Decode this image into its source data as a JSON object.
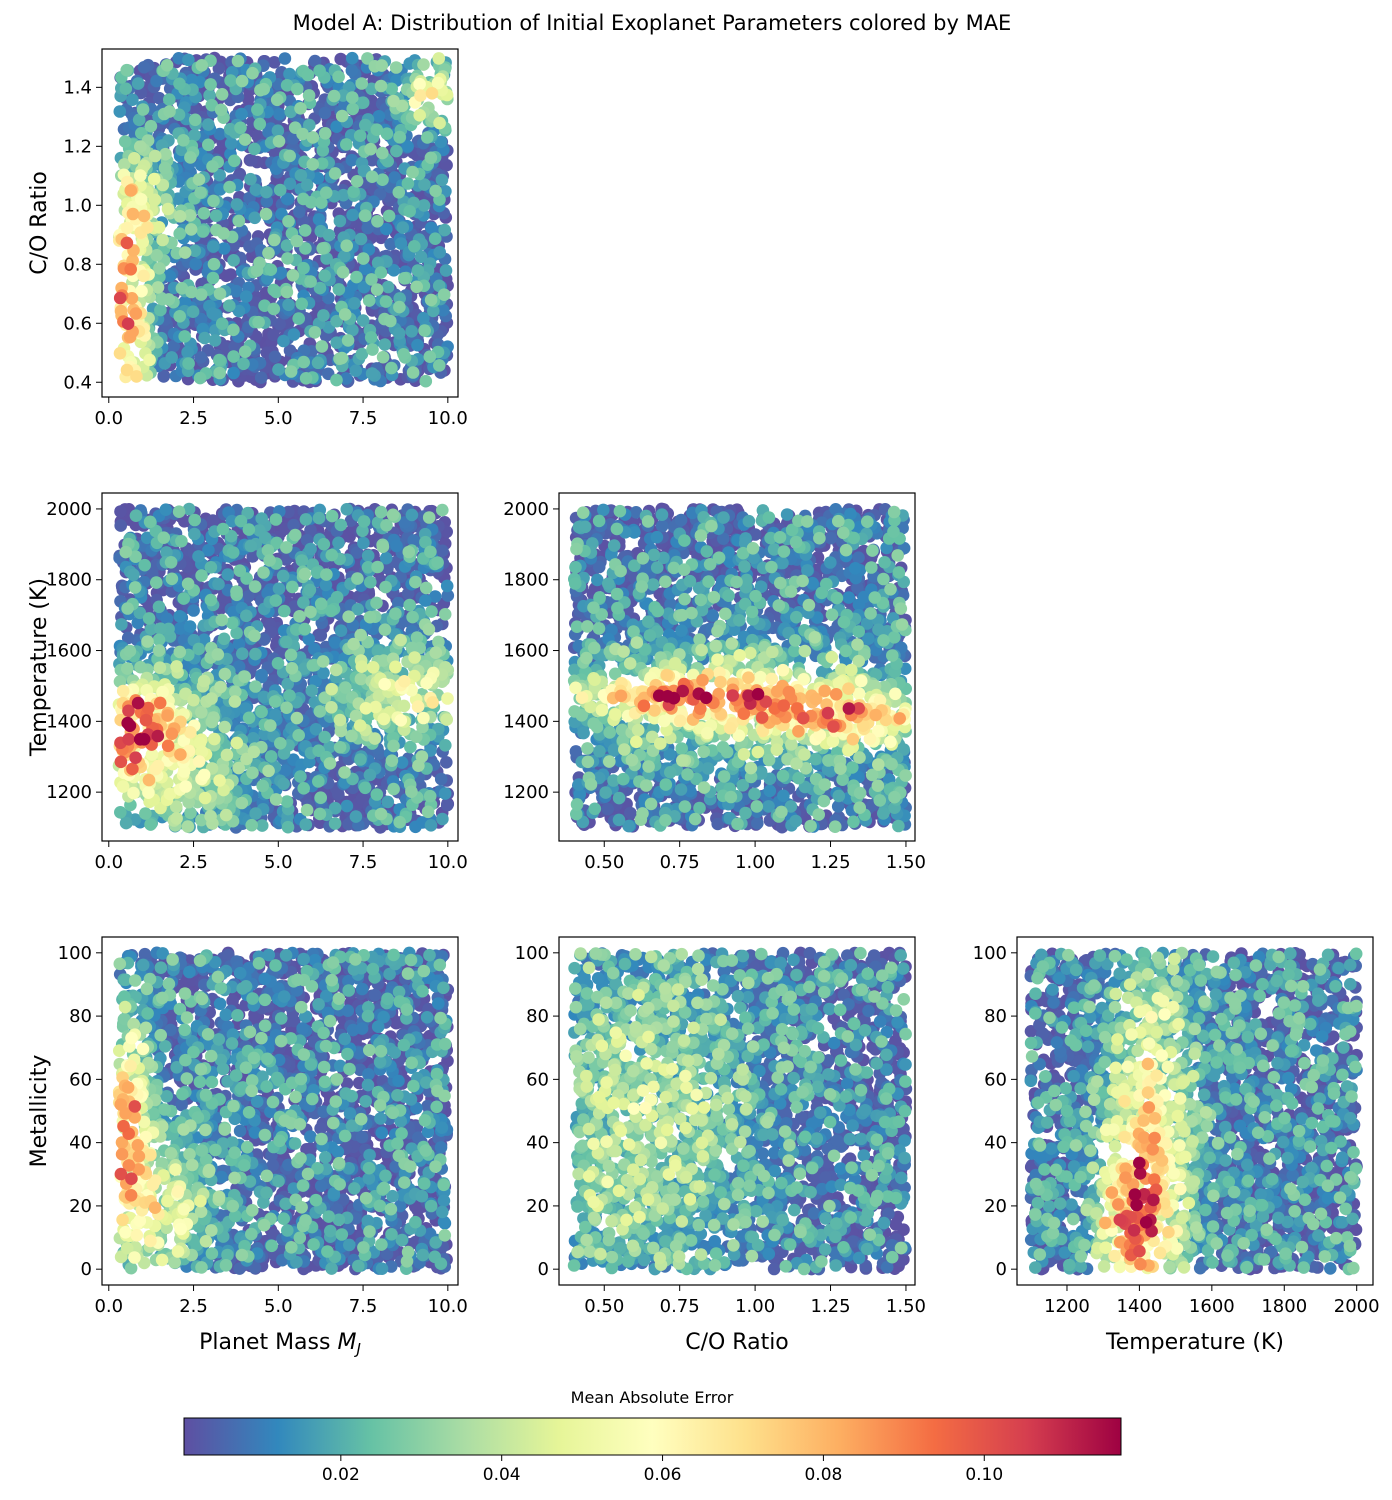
{
  "figure": {
    "title": "Model A: Distribution of Initial Exoplanet Parameters colored by MAE",
    "colorbar": {
      "label": "Mean Absolute Error",
      "min": 0.0005,
      "max": 0.117,
      "ticks": [
        "0.02",
        "0.04",
        "0.06",
        "0.08",
        "0.10"
      ],
      "tick_values": [
        0.02,
        0.04,
        0.06,
        0.08,
        0.1
      ],
      "colormap": "Spectral_r",
      "stops": [
        "#5e4fa2",
        "#3288bd",
        "#66c2a5",
        "#abdda4",
        "#e6f598",
        "#ffffbf",
        "#fee08b",
        "#fdae61",
        "#f46d43",
        "#d53e4f",
        "#9e0142"
      ]
    }
  },
  "chart_data": [
    {
      "type": "scatter",
      "panel": "mass-vs-co",
      "xlabel": "",
      "ylabel": "C/O Ratio",
      "xlim": [
        -0.2,
        10.3
      ],
      "ylim": [
        0.35,
        1.53
      ],
      "xticks": [
        "0.0",
        "2.5",
        "5.0",
        "7.5",
        "10.0"
      ],
      "xtick_values": [
        0,
        2.5,
        5,
        7.5,
        10
      ],
      "yticks": [
        "0.4",
        "0.6",
        "0.8",
        "1.0",
        "1.2",
        "1.4"
      ],
      "ytick_values": [
        0.4,
        0.6,
        0.8,
        1.0,
        1.2,
        1.4
      ],
      "x_range": [
        0.3,
        10.0
      ],
      "y_range": [
        0.4,
        1.5
      ],
      "points": 2400,
      "hotspots": [
        {
          "x": 0.5,
          "y": 0.62,
          "sx": 0.45,
          "sy": 0.25,
          "mae": 0.09
        },
        {
          "x": 0.9,
          "y": 1.0,
          "sx": 0.8,
          "sy": 0.12,
          "mae": 0.035
        },
        {
          "x": 9.5,
          "y": 1.38,
          "sx": 0.6,
          "sy": 0.08,
          "mae": 0.05
        }
      ]
    },
    {
      "type": "scatter",
      "panel": "mass-vs-temperature",
      "xlabel": "",
      "ylabel": "Temperature (K)",
      "xlim": [
        -0.2,
        10.3
      ],
      "ylim": [
        1062,
        2045
      ],
      "xticks": [
        "0.0",
        "2.5",
        "5.0",
        "7.5",
        "10.0"
      ],
      "xtick_values": [
        0,
        2.5,
        5,
        7.5,
        10
      ],
      "yticks": [
        "1200",
        "1400",
        "1600",
        "1800",
        "2000"
      ],
      "ytick_values": [
        1200,
        1400,
        1600,
        1800,
        2000
      ],
      "x_range": [
        0.3,
        10.0
      ],
      "y_range": [
        1100,
        2000
      ],
      "points": 2600,
      "hotspots": [
        {
          "x": 0.6,
          "y": 1380,
          "sx": 0.9,
          "sy": 90,
          "mae": 0.085
        },
        {
          "x": 1.5,
          "y": 1300,
          "sx": 1.6,
          "sy": 150,
          "mae": 0.04
        },
        {
          "x": 8.8,
          "y": 1480,
          "sx": 1.4,
          "sy": 90,
          "mae": 0.045
        }
      ]
    },
    {
      "type": "scatter",
      "panel": "co-vs-temperature",
      "xlabel": "",
      "ylabel": "",
      "xlim": [
        0.35,
        1.53
      ],
      "ylim": [
        1062,
        2045
      ],
      "xticks": [
        "0.50",
        "0.75",
        "1.00",
        "1.25",
        "1.50"
      ],
      "xtick_values": [
        0.5,
        0.75,
        1.0,
        1.25,
        1.5
      ],
      "yticks": [
        "1200",
        "1400",
        "1600",
        "1800",
        "2000"
      ],
      "ytick_values": [
        1200,
        1400,
        1600,
        1800,
        2000
      ],
      "x_range": [
        0.4,
        1.5
      ],
      "y_range": [
        1100,
        2000
      ],
      "points": 2600,
      "hotspots": [
        {
          "x": 0.8,
          "y": 1470,
          "sx": 0.25,
          "sy": 40,
          "mae": 0.07
        },
        {
          "x": 1.3,
          "y": 1410,
          "sx": 0.2,
          "sy": 50,
          "mae": 0.06
        },
        {
          "x": 0.95,
          "y": 1450,
          "sx": 0.4,
          "sy": 110,
          "mae": 0.035
        }
      ]
    },
    {
      "type": "scatter",
      "panel": "mass-vs-metallicity",
      "xlabel": "Planet Mass M_J",
      "ylabel": "Metallicity",
      "xlim": [
        -0.2,
        10.3
      ],
      "ylim": [
        -5,
        105
      ],
      "xticks": [
        "0.0",
        "2.5",
        "5.0",
        "7.5",
        "10.0"
      ],
      "xtick_values": [
        0,
        2.5,
        5,
        7.5,
        10
      ],
      "yticks": [
        "0",
        "20",
        "40",
        "60",
        "80",
        "100"
      ],
      "ytick_values": [
        0,
        20,
        40,
        60,
        80,
        100
      ],
      "x_range": [
        0.3,
        10.0
      ],
      "y_range": [
        0,
        100
      ],
      "points": 2600,
      "hotspots": [
        {
          "x": 0.5,
          "y": 45,
          "sx": 0.5,
          "sy": 25,
          "mae": 0.075
        },
        {
          "x": 1.5,
          "y": 20,
          "sx": 1.0,
          "sy": 15,
          "mae": 0.04
        }
      ]
    },
    {
      "type": "scatter",
      "panel": "co-vs-metallicity",
      "xlabel": "C/O Ratio",
      "ylabel": "",
      "xlim": [
        0.35,
        1.53
      ],
      "ylim": [
        -5,
        105
      ],
      "xticks": [
        "0.50",
        "0.75",
        "1.00",
        "1.25",
        "1.50"
      ],
      "xtick_values": [
        0.5,
        0.75,
        1.0,
        1.25,
        1.5
      ],
      "yticks": [
        "0",
        "20",
        "40",
        "60",
        "80",
        "100"
      ],
      "ytick_values": [
        0,
        20,
        40,
        60,
        80,
        100
      ],
      "x_range": [
        0.4,
        1.5
      ],
      "y_range": [
        0,
        100
      ],
      "points": 2600,
      "hotspots": [
        {
          "x": 0.6,
          "y": 45,
          "sx": 0.25,
          "sy": 35,
          "mae": 0.03
        }
      ]
    },
    {
      "type": "scatter",
      "panel": "temperature-vs-metallicity",
      "xlabel": "Temperature (K)",
      "ylabel": "",
      "xlim": [
        1062,
        2045
      ],
      "ylim": [
        -5,
        105
      ],
      "xticks": [
        "1200",
        "1400",
        "1600",
        "1800",
        "2000"
      ],
      "xtick_values": [
        1200,
        1400,
        1600,
        1800,
        2000
      ],
      "yticks": [
        "0",
        "20",
        "40",
        "60",
        "80",
        "100"
      ],
      "ytick_values": [
        0,
        20,
        40,
        60,
        80,
        100
      ],
      "x_range": [
        1100,
        2000
      ],
      "y_range": [
        0,
        100
      ],
      "points": 2600,
      "hotspots": [
        {
          "x": 1430,
          "y": 40,
          "sx": 80,
          "sy": 40,
          "mae": 0.055
        },
        {
          "x": 1380,
          "y": 15,
          "sx": 60,
          "sy": 15,
          "mae": 0.07
        }
      ]
    }
  ]
}
